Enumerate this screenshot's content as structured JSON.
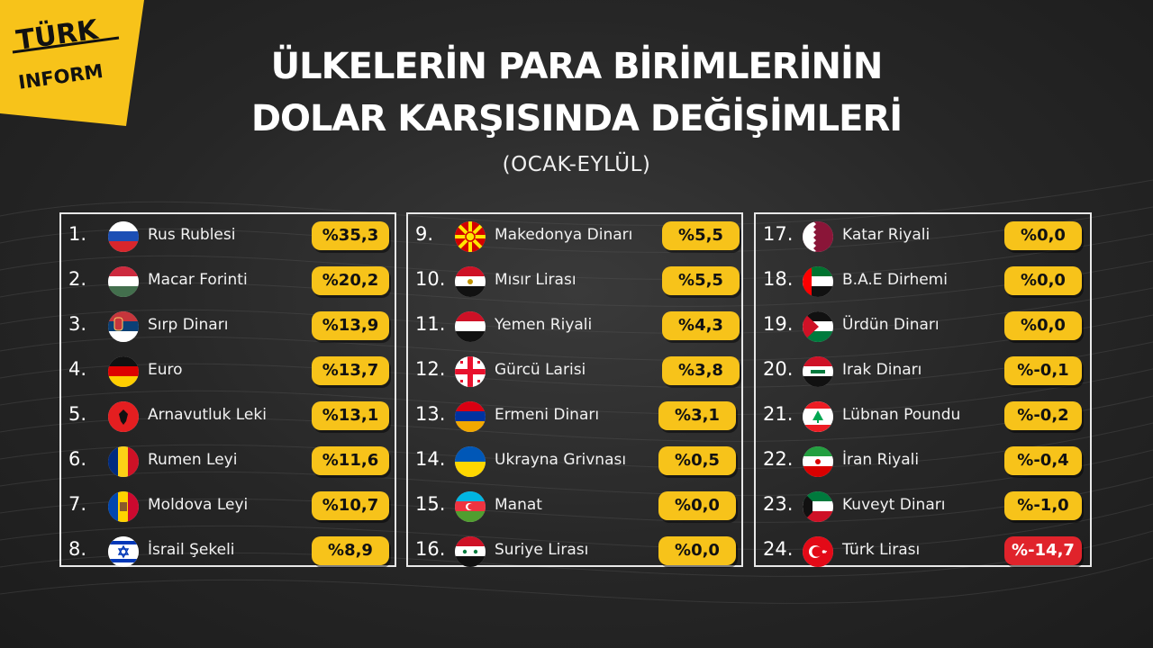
{
  "logo": {
    "line1": "TÜRK",
    "line2": "INFORM",
    "color": "#f7c31a"
  },
  "header": {
    "title_line1": "ÜLKELERİN PARA BİRİMLERİNİN",
    "title_line2": "DOLAR KARŞISINDA DEĞİŞİMLERİ",
    "subtitle": "(OCAK-EYLÜL)"
  },
  "colors": {
    "positive_pill": "#f7c31a",
    "negative_pill": "#e0232b",
    "background": "#262626"
  },
  "columns": [
    {
      "rows": [
        {
          "rank": "1.",
          "flag": "russia-flag-icon",
          "name": "Rus Rublesi",
          "value": "%35,3"
        },
        {
          "rank": "2.",
          "flag": "hungary-flag-icon",
          "name": "Macar Forinti",
          "value": "%20,2"
        },
        {
          "rank": "3.",
          "flag": "serbia-flag-icon",
          "name": "Sırp Dinarı",
          "value": "%13,9"
        },
        {
          "rank": "4.",
          "flag": "germany-flag-icon",
          "name": "Euro",
          "value": "%13,7"
        },
        {
          "rank": "5.",
          "flag": "albania-flag-icon",
          "name": "Arnavutluk Leki",
          "value": "%13,1"
        },
        {
          "rank": "6.",
          "flag": "romania-flag-icon",
          "name": "Rumen Leyi",
          "value": "%11,6"
        },
        {
          "rank": "7.",
          "flag": "moldova-flag-icon",
          "name": "Moldova Leyi",
          "value": "%10,7"
        },
        {
          "rank": "8.",
          "flag": "israel-flag-icon",
          "name": "İsrail Şekeli",
          "value": "%8,9"
        }
      ]
    },
    {
      "rows": [
        {
          "rank": "9.",
          "flag": "north-macedonia-flag-icon",
          "name": "Makedonya Dinarı",
          "value": "%5,5"
        },
        {
          "rank": "10.",
          "flag": "egypt-flag-icon",
          "name": "Mısır Lirası",
          "value": "%5,5"
        },
        {
          "rank": "11.",
          "flag": "yemen-flag-icon",
          "name": "Yemen Riyali",
          "value": "%4,3"
        },
        {
          "rank": "12.",
          "flag": "georgia-flag-icon",
          "name": "Gürcü Larisi",
          "value": "%3,8"
        },
        {
          "rank": "13.",
          "flag": "armenia-flag-icon",
          "name": "Ermeni Dinarı",
          "value": "%3,1"
        },
        {
          "rank": "14.",
          "flag": "ukraine-flag-icon",
          "name": "Ukrayna Grivnası",
          "value": "%0,5"
        },
        {
          "rank": "15.",
          "flag": "azerbaijan-flag-icon",
          "name": "Manat",
          "value": "%0,0"
        },
        {
          "rank": "16.",
          "flag": "syria-flag-icon",
          "name": "Suriye Lirası",
          "value": "%0,0"
        }
      ]
    },
    {
      "rows": [
        {
          "rank": "17.",
          "flag": "qatar-flag-icon",
          "name": "Katar Riyali",
          "value": "%0,0"
        },
        {
          "rank": "18.",
          "flag": "uae-flag-icon",
          "name": "B.A.E Dirhemi",
          "value": "%0,0"
        },
        {
          "rank": "19.",
          "flag": "jordan-flag-icon",
          "name": "Ürdün Dinarı",
          "value": "%0,0"
        },
        {
          "rank": "20.",
          "flag": "iraq-flag-icon",
          "name": "Irak Dinarı",
          "value": "%-0,1"
        },
        {
          "rank": "21.",
          "flag": "lebanon-flag-icon",
          "name": "Lübnan Poundu",
          "value": "%-0,2"
        },
        {
          "rank": "22.",
          "flag": "iran-flag-icon",
          "name": "İran Riyali",
          "value": "%-0,4"
        },
        {
          "rank": "23.",
          "flag": "kuwait-flag-icon",
          "name": "Kuveyt Dinarı",
          "value": "%-1,0"
        },
        {
          "rank": "24.",
          "flag": "turkey-flag-icon",
          "name": "Türk Lirası",
          "value": "%-14,7",
          "highlight": true
        }
      ]
    }
  ]
}
